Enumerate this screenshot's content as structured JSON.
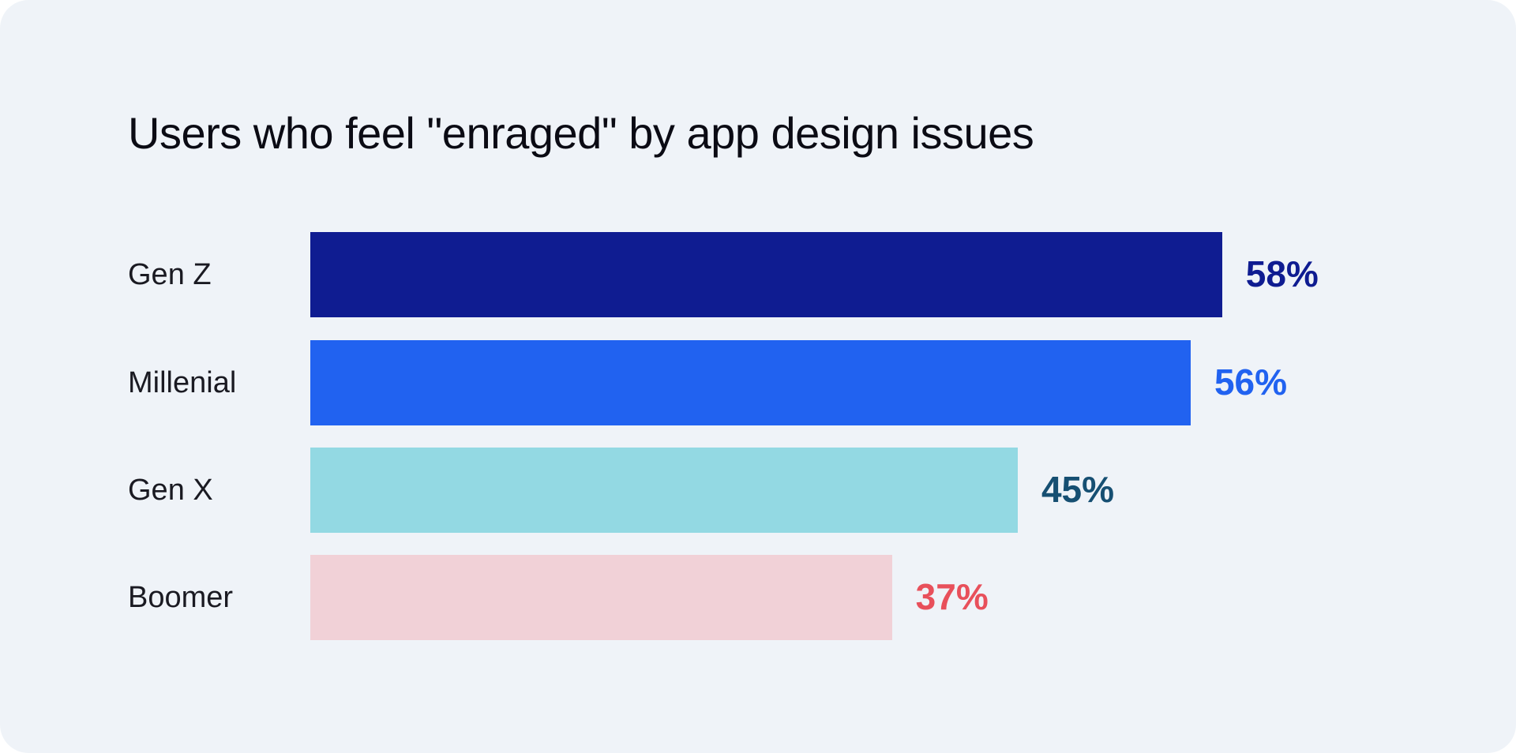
{
  "chart_data": {
    "type": "bar",
    "orientation": "horizontal",
    "title": "Users who feel \"enraged\" by app design issues",
    "categories": [
      "Gen Z",
      "Millenial",
      "Gen X",
      "Boomer"
    ],
    "values": [
      58,
      56,
      45,
      37
    ],
    "value_labels": [
      "58%",
      "56%",
      "45%",
      "37%"
    ],
    "bar_colors": [
      "#0f1c91",
      "#2162f0",
      "#93d9e3",
      "#f1d1d7"
    ],
    "label_colors": [
      "#0f1c91",
      "#2162f0",
      "#164f72",
      "#e8505b"
    ],
    "xlim": [
      0,
      100
    ],
    "grid": false,
    "legend": "none",
    "background": "#eff3f8"
  }
}
